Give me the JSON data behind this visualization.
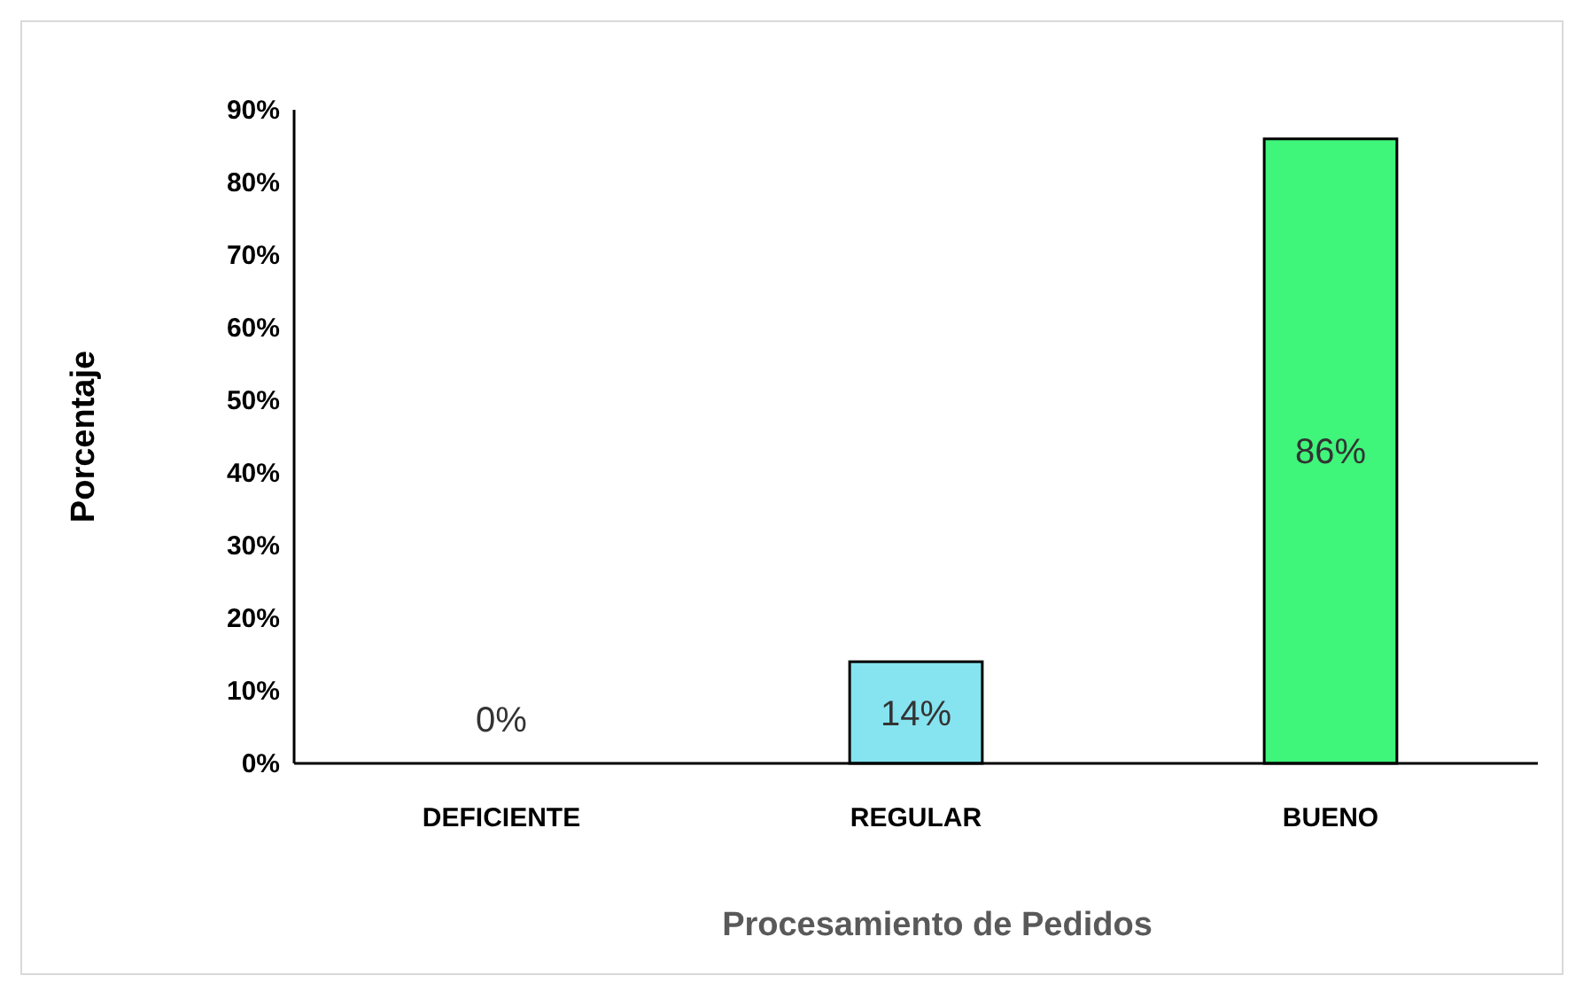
{
  "chart_data": {
    "type": "bar",
    "xlabel": "Procesamiento de Pedidos",
    "ylabel": "Porcentaje",
    "categories": [
      "DEFICIENTE",
      "REGULAR",
      "BUENO"
    ],
    "values": [
      0,
      14,
      86
    ],
    "colors": [
      "#86e3f0",
      "#86e3f0",
      "#3ff57a"
    ],
    "value_labels": [
      "0%",
      "14%",
      "86%"
    ],
    "ylim": [
      0,
      90
    ],
    "yticks": [
      {
        "value": 0,
        "label": "0%"
      },
      {
        "value": 10,
        "label": "10%"
      },
      {
        "value": 20,
        "label": "20%"
      },
      {
        "value": 30,
        "label": "30%"
      },
      {
        "value": 40,
        "label": "40%"
      },
      {
        "value": 50,
        "label": "50%"
      },
      {
        "value": 60,
        "label": "60%"
      },
      {
        "value": 70,
        "label": "70%"
      },
      {
        "value": 80,
        "label": "80%"
      },
      {
        "value": 90,
        "label": "90%"
      }
    ],
    "grid": false
  }
}
